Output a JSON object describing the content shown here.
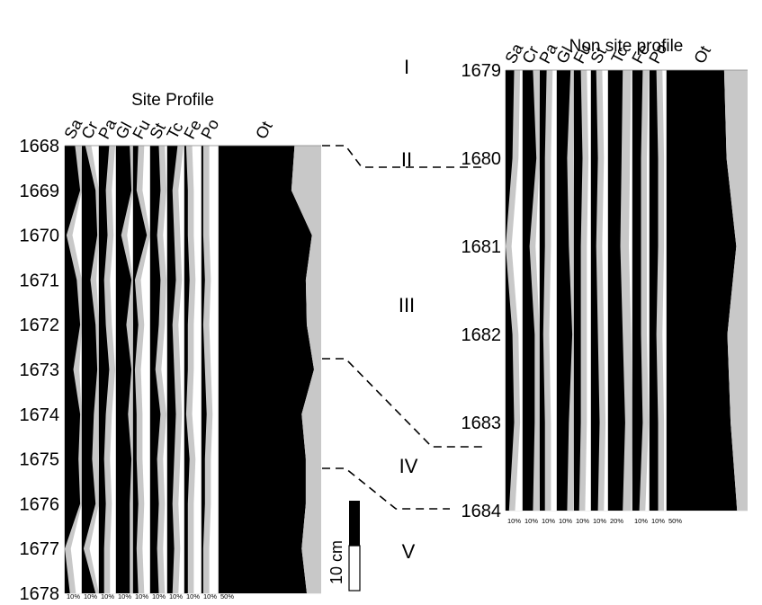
{
  "chart_data": [
    {
      "type": "area",
      "chart_kind": "stratigraphic percentage diagram",
      "title": "Site Profile",
      "y_axis": {
        "orientation": "depth",
        "ticks": [
          1668,
          1669,
          1670,
          1671,
          1672,
          1673,
          1674,
          1675,
          1676,
          1677,
          1678
        ]
      },
      "taxa": [
        "Sa",
        "Cr",
        "Pa",
        "Gl",
        "Fu",
        "St",
        "Tc",
        "Fe",
        "Po",
        "Ot"
      ],
      "scale_labels": [
        "10%",
        "10%",
        "10%",
        "10%",
        "10%",
        "10%",
        "10%",
        "10%",
        "10%",
        "50%"
      ],
      "y": [
        1668,
        1669,
        1670,
        1671,
        1672,
        1673,
        1674,
        1675,
        1676,
        1677,
        1678
      ],
      "series": [
        {
          "name": "Sa",
          "values": [
            6,
            9,
            1,
            7,
            9,
            5,
            9,
            8,
            9,
            0,
            3
          ]
        },
        {
          "name": "Cr",
          "values": [
            2,
            8,
            9,
            5,
            8,
            9,
            7,
            6,
            8,
            1,
            8
          ]
        },
        {
          "name": "Pa",
          "values": [
            6,
            4,
            5,
            3,
            4,
            6,
            4,
            3,
            4,
            3,
            3
          ]
        },
        {
          "name": "Gl",
          "values": [
            8,
            9,
            3,
            9,
            6,
            9,
            7,
            9,
            8,
            8,
            8
          ]
        },
        {
          "name": "Fu",
          "values": [
            3,
            2,
            8,
            1,
            3,
            1,
            2,
            2,
            3,
            2,
            3
          ]
        },
        {
          "name": "St",
          "values": [
            5,
            6,
            4,
            6,
            5,
            3,
            6,
            4,
            5,
            4,
            5
          ]
        },
        {
          "name": "Tc",
          "values": [
            6,
            3,
            4,
            5,
            3,
            4,
            5,
            4,
            3,
            4,
            3
          ]
        },
        {
          "name": "Fe",
          "values": [
            1,
            2,
            2,
            3,
            2,
            2,
            1,
            3,
            2,
            2,
            2
          ]
        },
        {
          "name": "Po",
          "values": [
            1,
            1,
            1,
            2,
            1,
            2,
            3,
            2,
            2,
            1,
            1
          ]
        },
        {
          "name": "Ot",
          "values": [
            74,
            71,
            91,
            85,
            86,
            93,
            81,
            85,
            85,
            81,
            86
          ]
        }
      ]
    },
    {
      "type": "area",
      "chart_kind": "stratigraphic percentage diagram",
      "title": "Non site profile",
      "y_axis": {
        "orientation": "depth",
        "ticks": [
          1679,
          1680,
          1681,
          1682,
          1683,
          1684
        ]
      },
      "taxa": [
        "Sa",
        "Cr",
        "Pa",
        "Gl",
        "Fu",
        "St",
        "Tc",
        "Fe",
        "Po",
        "Ot"
      ],
      "scale_labels": [
        "10%",
        "10%",
        "10%",
        "10%",
        "10%",
        "10%",
        "20%",
        "10%",
        "10%",
        "50%"
      ],
      "y": [
        1679,
        1680,
        1681,
        1682,
        1683,
        1684
      ],
      "series": [
        {
          "name": "Sa",
          "values": [
            5,
            4,
            0,
            4,
            5,
            2
          ]
        },
        {
          "name": "Cr",
          "values": [
            6,
            8,
            4,
            7,
            7,
            6
          ]
        },
        {
          "name": "Pa",
          "values": [
            4,
            3,
            3,
            2,
            3,
            3
          ]
        },
        {
          "name": "Gl",
          "values": [
            8,
            6,
            7,
            9,
            7,
            6
          ]
        },
        {
          "name": "Fu",
          "values": [
            4,
            5,
            4,
            4,
            4,
            3
          ]
        },
        {
          "name": "St",
          "values": [
            3,
            4,
            3,
            4,
            5,
            4
          ]
        },
        {
          "name": "Tc",
          "values": [
            12,
            11,
            10,
            12,
            14,
            12
          ]
        },
        {
          "name": "Fe",
          "values": [
            6,
            5,
            5,
            5,
            6,
            4
          ]
        },
        {
          "name": "Po",
          "values": [
            4,
            5,
            5,
            4,
            5,
            5
          ]
        },
        {
          "name": "Ot",
          "values": [
            71,
            74,
            86,
            75,
            79,
            87
          ]
        }
      ]
    }
  ],
  "zones": [
    "I",
    "II",
    "III",
    "IV",
    "V"
  ],
  "depth_scale": {
    "label": "10 cm"
  }
}
